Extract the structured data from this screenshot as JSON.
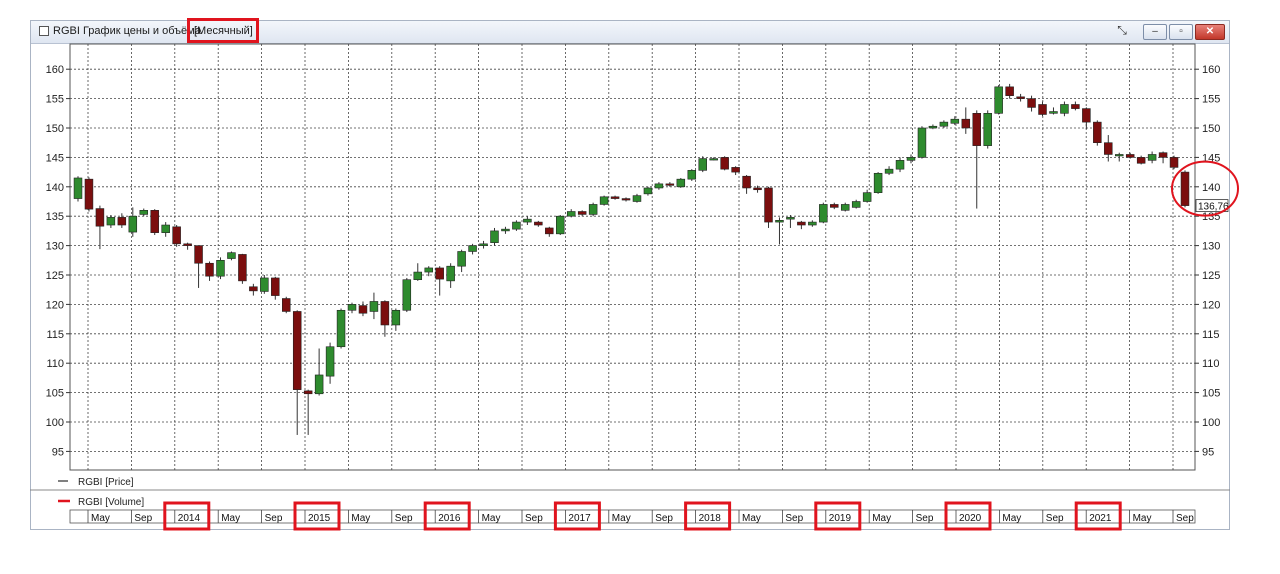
{
  "window": {
    "title": "RGBI График цены и объёма",
    "mode": "[Месячный]",
    "buttons": [
      "pin",
      "minimize",
      "restore",
      "close"
    ],
    "colors": {
      "up": "#2e8b2e",
      "down": "#7b0e0e",
      "highlight": "#e0141e"
    }
  },
  "legend": {
    "price": "RGBI [Price]",
    "volume": "RGBI [Volume]"
  },
  "chart_data": {
    "type": "candlestick",
    "title": "",
    "xlabel": "",
    "ylabel": "",
    "ylim": [
      91,
      163
    ],
    "yticks": [
      95,
      100,
      105,
      110,
      115,
      120,
      125,
      130,
      135,
      140,
      145,
      150,
      155,
      160
    ],
    "grid": true,
    "last_price": "136,76",
    "time_labels": [
      "May",
      "Sep",
      "2014",
      "May",
      "Sep",
      "2015",
      "May",
      "Sep",
      "2016",
      "May",
      "Sep",
      "2017",
      "May",
      "Sep",
      "2018",
      "May",
      "Sep",
      "2019",
      "May",
      "Sep",
      "2020",
      "May",
      "Sep",
      "2021",
      "May",
      "Sep"
    ],
    "candles": [
      {
        "o": 138.0,
        "c": 141.5,
        "h": 141.8,
        "l": 137.5
      },
      {
        "o": 141.3,
        "c": 136.2,
        "h": 141.6,
        "l": 135.8
      },
      {
        "o": 136.3,
        "c": 133.3,
        "h": 136.8,
        "l": 129.4
      },
      {
        "o": 133.5,
        "c": 134.8,
        "h": 135.2,
        "l": 133.0
      },
      {
        "o": 134.8,
        "c": 133.5,
        "h": 135.5,
        "l": 133.0
      },
      {
        "o": 132.3,
        "c": 135.0,
        "h": 136.5,
        "l": 131.5
      },
      {
        "o": 135.3,
        "c": 136.0,
        "h": 136.3,
        "l": 135.0
      },
      {
        "o": 136.0,
        "c": 132.2,
        "h": 136.2,
        "l": 131.8
      },
      {
        "o": 132.2,
        "c": 133.5,
        "h": 134.0,
        "l": 131.5
      },
      {
        "o": 133.2,
        "c": 130.3,
        "h": 133.5,
        "l": 129.8
      },
      {
        "o": 130.3,
        "c": 130.0,
        "h": 130.5,
        "l": 129.3
      },
      {
        "o": 130.0,
        "c": 127.0,
        "h": 130.0,
        "l": 122.8
      },
      {
        "o": 127.0,
        "c": 124.8,
        "h": 127.3,
        "l": 124.0
      },
      {
        "o": 124.8,
        "c": 127.5,
        "h": 128.0,
        "l": 124.3
      },
      {
        "o": 127.8,
        "c": 128.8,
        "h": 129.0,
        "l": 127.5
      },
      {
        "o": 128.5,
        "c": 124.0,
        "h": 128.6,
        "l": 123.5
      },
      {
        "o": 123.0,
        "c": 122.3,
        "h": 123.5,
        "l": 121.5
      },
      {
        "o": 122.2,
        "c": 124.5,
        "h": 125.0,
        "l": 121.8
      },
      {
        "o": 124.5,
        "c": 121.5,
        "h": 124.7,
        "l": 120.8
      },
      {
        "o": 121.0,
        "c": 118.8,
        "h": 121.3,
        "l": 118.5
      },
      {
        "o": 118.8,
        "c": 105.5,
        "h": 119.0,
        "l": 97.8
      },
      {
        "o": 105.3,
        "c": 104.8,
        "h": 105.5,
        "l": 97.8
      },
      {
        "o": 104.8,
        "c": 108.0,
        "h": 112.5,
        "l": 104.5
      },
      {
        "o": 107.8,
        "c": 112.8,
        "h": 113.5,
        "l": 106.5
      },
      {
        "o": 112.8,
        "c": 119.0,
        "h": 119.3,
        "l": 112.5
      },
      {
        "o": 119.0,
        "c": 120.0,
        "h": 120.3,
        "l": 118.5
      },
      {
        "o": 119.8,
        "c": 118.5,
        "h": 120.5,
        "l": 118.0
      },
      {
        "o": 118.8,
        "c": 120.5,
        "h": 122.0,
        "l": 117.5
      },
      {
        "o": 120.5,
        "c": 116.5,
        "h": 120.7,
        "l": 114.5
      },
      {
        "o": 116.5,
        "c": 119.0,
        "h": 119.3,
        "l": 115.5
      },
      {
        "o": 119.0,
        "c": 124.2,
        "h": 124.5,
        "l": 118.7
      },
      {
        "o": 124.2,
        "c": 125.5,
        "h": 127.0,
        "l": 124.0
      },
      {
        "o": 125.5,
        "c": 126.2,
        "h": 126.5,
        "l": 124.8
      },
      {
        "o": 126.2,
        "c": 124.3,
        "h": 126.5,
        "l": 121.5
      },
      {
        "o": 124.0,
        "c": 126.5,
        "h": 127.0,
        "l": 122.8
      },
      {
        "o": 126.5,
        "c": 129.0,
        "h": 129.3,
        "l": 125.5
      },
      {
        "o": 129.0,
        "c": 130.0,
        "h": 130.3,
        "l": 128.5
      },
      {
        "o": 130.0,
        "c": 130.3,
        "h": 130.8,
        "l": 129.5
      },
      {
        "o": 130.5,
        "c": 132.5,
        "h": 133.0,
        "l": 130.0
      },
      {
        "o": 132.5,
        "c": 132.8,
        "h": 133.2,
        "l": 132.0
      },
      {
        "o": 132.8,
        "c": 134.0,
        "h": 134.3,
        "l": 132.5
      },
      {
        "o": 134.0,
        "c": 134.5,
        "h": 135.0,
        "l": 133.5
      },
      {
        "o": 134.0,
        "c": 133.5,
        "h": 134.2,
        "l": 133.2
      },
      {
        "o": 133.0,
        "c": 132.0,
        "h": 133.2,
        "l": 131.5
      },
      {
        "o": 132.0,
        "c": 135.0,
        "h": 135.2,
        "l": 131.8
      },
      {
        "o": 135.0,
        "c": 135.8,
        "h": 136.2,
        "l": 134.8
      },
      {
        "o": 135.8,
        "c": 135.3,
        "h": 136.0,
        "l": 135.0
      },
      {
        "o": 135.3,
        "c": 137.0,
        "h": 137.3,
        "l": 135.0
      },
      {
        "o": 137.0,
        "c": 138.3,
        "h": 138.5,
        "l": 136.8
      },
      {
        "o": 138.3,
        "c": 138.0,
        "h": 138.5,
        "l": 137.8
      },
      {
        "o": 138.0,
        "c": 137.8,
        "h": 138.2,
        "l": 137.5
      },
      {
        "o": 137.5,
        "c": 138.5,
        "h": 138.8,
        "l": 137.3
      },
      {
        "o": 138.8,
        "c": 139.8,
        "h": 140.0,
        "l": 138.5
      },
      {
        "o": 139.8,
        "c": 140.5,
        "h": 140.8,
        "l": 139.5
      },
      {
        "o": 140.5,
        "c": 140.3,
        "h": 140.8,
        "l": 140.0
      },
      {
        "o": 140.0,
        "c": 141.3,
        "h": 141.5,
        "l": 139.8
      },
      {
        "o": 141.3,
        "c": 142.8,
        "h": 143.0,
        "l": 141.0
      },
      {
        "o": 142.8,
        "c": 144.8,
        "h": 145.2,
        "l": 142.5
      },
      {
        "o": 144.8,
        "c": 144.8,
        "h": 145.0,
        "l": 144.5
      },
      {
        "o": 145.0,
        "c": 143.0,
        "h": 145.2,
        "l": 142.8
      },
      {
        "o": 143.3,
        "c": 142.5,
        "h": 143.5,
        "l": 142.0
      },
      {
        "o": 141.8,
        "c": 139.8,
        "h": 142.0,
        "l": 138.8
      },
      {
        "o": 139.8,
        "c": 139.5,
        "h": 140.2,
        "l": 139.0
      },
      {
        "o": 139.8,
        "c": 134.0,
        "h": 140.0,
        "l": 133.0
      },
      {
        "o": 134.0,
        "c": 134.3,
        "h": 134.8,
        "l": 130.2
      },
      {
        "o": 134.5,
        "c": 134.8,
        "h": 135.2,
        "l": 133.0
      },
      {
        "o": 134.0,
        "c": 133.5,
        "h": 134.2,
        "l": 132.8
      },
      {
        "o": 133.5,
        "c": 134.0,
        "h": 134.3,
        "l": 133.2
      },
      {
        "o": 134.0,
        "c": 137.0,
        "h": 137.3,
        "l": 133.8
      },
      {
        "o": 137.0,
        "c": 136.5,
        "h": 137.3,
        "l": 136.2
      },
      {
        "o": 136.0,
        "c": 137.0,
        "h": 137.3,
        "l": 135.8
      },
      {
        "o": 136.5,
        "c": 137.5,
        "h": 137.8,
        "l": 136.3
      },
      {
        "o": 137.5,
        "c": 139.0,
        "h": 139.5,
        "l": 137.3
      },
      {
        "o": 139.0,
        "c": 142.3,
        "h": 142.5,
        "l": 138.8
      },
      {
        "o": 142.3,
        "c": 143.0,
        "h": 143.5,
        "l": 142.0
      },
      {
        "o": 143.0,
        "c": 144.5,
        "h": 145.0,
        "l": 142.5
      },
      {
        "o": 144.5,
        "c": 145.0,
        "h": 145.5,
        "l": 144.0
      },
      {
        "o": 145.0,
        "c": 150.0,
        "h": 150.3,
        "l": 144.8
      },
      {
        "o": 150.0,
        "c": 150.3,
        "h": 150.6,
        "l": 149.8
      },
      {
        "o": 150.3,
        "c": 151.0,
        "h": 151.3,
        "l": 150.0
      },
      {
        "o": 150.8,
        "c": 151.5,
        "h": 152.0,
        "l": 150.5
      },
      {
        "o": 151.5,
        "c": 150.0,
        "h": 153.5,
        "l": 149.0
      },
      {
        "o": 152.5,
        "c": 147.0,
        "h": 153.0,
        "l": 136.3
      },
      {
        "o": 147.0,
        "c": 152.5,
        "h": 153.0,
        "l": 146.5
      },
      {
        "o": 152.5,
        "c": 157.0,
        "h": 157.3,
        "l": 152.3
      },
      {
        "o": 157.0,
        "c": 155.5,
        "h": 157.5,
        "l": 155.0
      },
      {
        "o": 155.3,
        "c": 155.0,
        "h": 155.8,
        "l": 154.5
      },
      {
        "o": 155.0,
        "c": 153.5,
        "h": 155.5,
        "l": 152.8
      },
      {
        "o": 154.0,
        "c": 152.3,
        "h": 154.5,
        "l": 152.0
      },
      {
        "o": 152.5,
        "c": 152.8,
        "h": 153.5,
        "l": 152.3
      },
      {
        "o": 152.5,
        "c": 154.0,
        "h": 154.5,
        "l": 152.0
      },
      {
        "o": 154.0,
        "c": 153.3,
        "h": 154.5,
        "l": 153.0
      },
      {
        "o": 153.3,
        "c": 151.0,
        "h": 153.5,
        "l": 149.8
      },
      {
        "o": 151.0,
        "c": 147.5,
        "h": 151.3,
        "l": 147.0
      },
      {
        "o": 147.5,
        "c": 145.5,
        "h": 148.8,
        "l": 144.3
      },
      {
        "o": 145.5,
        "c": 145.5,
        "h": 145.8,
        "l": 144.3
      },
      {
        "o": 145.5,
        "c": 145.0,
        "h": 145.8,
        "l": 144.8
      },
      {
        "o": 145.0,
        "c": 144.0,
        "h": 145.3,
        "l": 143.8
      },
      {
        "o": 144.5,
        "c": 145.5,
        "h": 146.0,
        "l": 144.0
      },
      {
        "o": 145.8,
        "c": 145.0,
        "h": 146.0,
        "l": 144.0
      },
      {
        "o": 145.0,
        "c": 143.3,
        "h": 145.3,
        "l": 143.0
      },
      {
        "o": 142.5,
        "c": 136.8,
        "h": 142.8,
        "l": 136.5
      }
    ]
  }
}
